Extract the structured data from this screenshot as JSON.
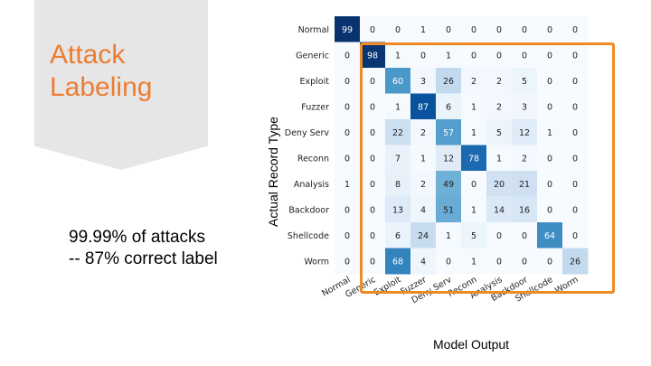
{
  "slide": {
    "title_line1": "Attack",
    "title_line2": "Labeling",
    "stat_line1": "99.99% of attacks",
    "stat_line2": "-- 87% correct label"
  },
  "colors": {
    "title": "#ed7d31",
    "highlight_border": "#f08a24",
    "cmap_low": "#f7fbff",
    "cmap_high": "#08306b"
  },
  "chart_data": {
    "type": "heatmap",
    "xlabel": "Model Output",
    "ylabel": "Actual Record Type",
    "rows": [
      "Normal",
      "Generic",
      "Exploit",
      "Fuzzer",
      "Deny Serv",
      "Reconn",
      "Analysis",
      "Backdoor",
      "Shellcode",
      "Worm"
    ],
    "columns": [
      "Normal",
      "Generic",
      "Exploit",
      "Fuzzer",
      "Deny Serv",
      "Reconn",
      "Analysis",
      "Backdoor",
      "Shellcode",
      "Worm"
    ],
    "values": [
      [
        99,
        0,
        0,
        1,
        0,
        0,
        0,
        0,
        0,
        0
      ],
      [
        0,
        98,
        1,
        0,
        1,
        0,
        0,
        0,
        0,
        0
      ],
      [
        0,
        0,
        60,
        3,
        26,
        2,
        2,
        5,
        0,
        0
      ],
      [
        0,
        0,
        1,
        87,
        6,
        1,
        2,
        3,
        0,
        0
      ],
      [
        0,
        0,
        22,
        2,
        57,
        1,
        5,
        12,
        1,
        0
      ],
      [
        0,
        0,
        7,
        1,
        12,
        78,
        1,
        2,
        0,
        0
      ],
      [
        1,
        0,
        8,
        2,
        49,
        0,
        20,
        21,
        0,
        0
      ],
      [
        0,
        0,
        13,
        4,
        51,
        1,
        14,
        16,
        0,
        0
      ],
      [
        0,
        0,
        6,
        24,
        1,
        5,
        0,
        0,
        64,
        0
      ],
      [
        0,
        0,
        68,
        4,
        0,
        1,
        0,
        0,
        0,
        26
      ]
    ],
    "value_range": [
      0,
      100
    ],
    "colormap": "Blues",
    "grid": false
  }
}
